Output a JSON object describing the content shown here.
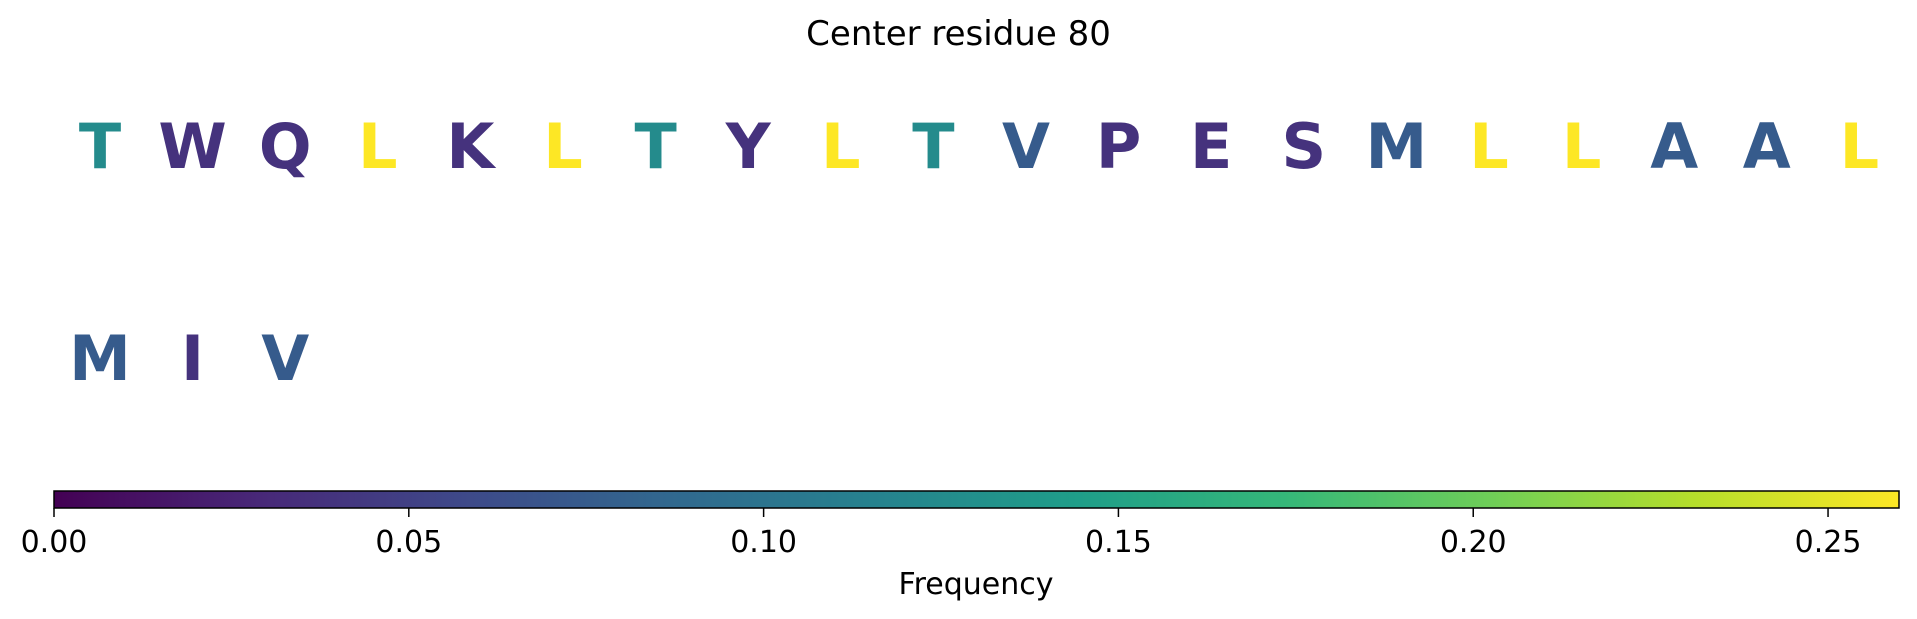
{
  "title": "Center residue 80",
  "chart_data": {
    "type": "heatmap",
    "title": "Center residue 80",
    "colormap": "viridis",
    "rows": [
      {
        "residues": [
          "T",
          "W",
          "Q",
          "L",
          "K",
          "L",
          "T",
          "Y",
          "L",
          "T",
          "V",
          "P",
          "E",
          "S",
          "M",
          "L",
          "L",
          "A",
          "A",
          "L"
        ],
        "values": [
          0.125,
          0.038,
          0.038,
          0.26,
          0.038,
          0.26,
          0.125,
          0.038,
          0.26,
          0.125,
          0.075,
          0.038,
          0.038,
          0.038,
          0.075,
          0.26,
          0.26,
          0.075,
          0.075,
          0.26
        ]
      },
      {
        "residues": [
          "M",
          "I",
          "V"
        ],
        "values": [
          0.075,
          0.038,
          0.075
        ]
      }
    ],
    "colorbar": {
      "label": "Frequency",
      "range": [
        0,
        0.26
      ],
      "ticks": [
        0.0,
        0.05,
        0.1,
        0.15,
        0.2,
        0.25
      ],
      "tick_labels": [
        "0.00",
        "0.05",
        "0.10",
        "0.15",
        "0.20",
        "0.25"
      ]
    }
  }
}
